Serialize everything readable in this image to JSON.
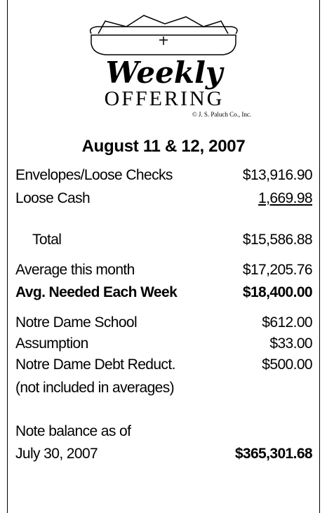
{
  "logo": {
    "script": "Weekly",
    "word": "OFFERING",
    "copyright": "© J. S. Paluch Co., Inc."
  },
  "title": "August 11 & 12, 2007",
  "rows": [
    {
      "label": "Envelopes/Loose Checks",
      "amount": "$13,916.90"
    },
    {
      "label": "Loose Cash",
      "amount": "1,669.98"
    },
    {
      "label": "Total",
      "amount": "$15,586.88"
    },
    {
      "label": "Average this month",
      "amount": "$17,205.76"
    },
    {
      "label": "Avg. Needed Each Week",
      "amount": "$18,400.00"
    },
    {
      "label": "Notre Dame School",
      "amount": "$612.00"
    },
    {
      "label": "Assumption",
      "amount": "$33.00"
    },
    {
      "label": "Notre Dame Debt Reduct.",
      "amount": "$500.00"
    }
  ],
  "note": "(not included in averages)",
  "balance": {
    "label1": "Note balance as of",
    "label2": "July 30, 2007",
    "amount": "$365,301.68"
  }
}
